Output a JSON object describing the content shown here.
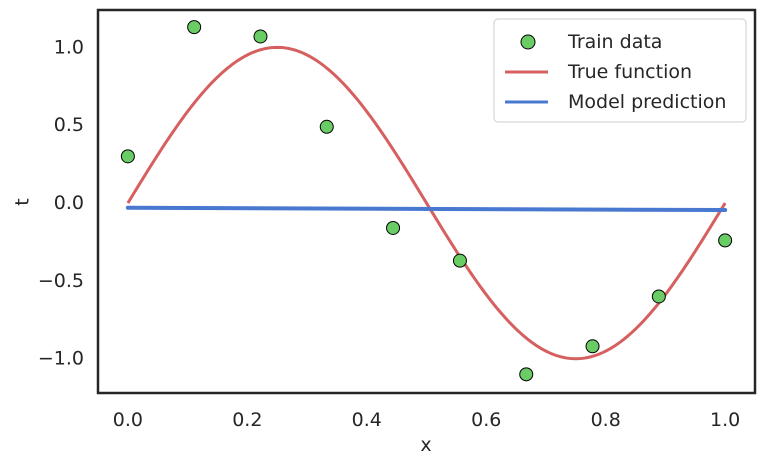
{
  "chart_data": {
    "type": "scatter",
    "xlabel": "x",
    "ylabel": "t",
    "xlim": [
      -0.05,
      1.05
    ],
    "ylim": [
      -1.22,
      1.24
    ],
    "x_ticks": [
      0.0,
      0.2,
      0.4,
      0.6,
      0.8,
      1.0
    ],
    "x_tick_labels": [
      "0.0",
      "0.2",
      "0.4",
      "0.6",
      "0.8",
      "1.0"
    ],
    "y_ticks": [
      1.0,
      0.5,
      0.0,
      -0.5,
      -1.0
    ],
    "y_tick_labels": [
      "1.0",
      "0.5",
      "0.0",
      "−0.5",
      "−1.0"
    ],
    "grid": false,
    "legend_position": "top-right",
    "series": [
      {
        "name": "Train data",
        "kind": "scatter",
        "color": "#6acc64",
        "edge_color": "#000000",
        "x": [
          0.0,
          0.111,
          0.222,
          0.333,
          0.444,
          0.556,
          0.667,
          0.778,
          0.889,
          1.0
        ],
        "y": [
          0.3,
          1.13,
          1.07,
          0.49,
          -0.16,
          -0.37,
          -1.1,
          -0.92,
          -0.6,
          -0.24
        ]
      },
      {
        "name": "True function",
        "kind": "line",
        "function": "sin(2*pi*x)",
        "color": "#d65f5f",
        "x_range": [
          0.0,
          1.0
        ]
      },
      {
        "name": "Model prediction",
        "kind": "line",
        "color": "#4878d0",
        "x": [
          0.0,
          1.0
        ],
        "y": [
          -0.03,
          -0.045
        ]
      }
    ]
  }
}
